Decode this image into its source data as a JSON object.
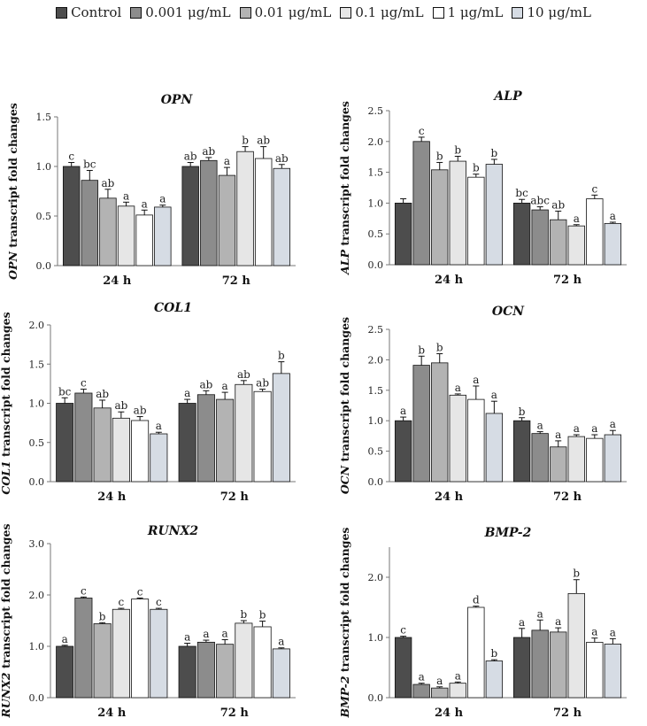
{
  "legend": [
    {
      "label": "Control",
      "color": "#4d4d4d"
    },
    {
      "label": "0.001 μg/mL",
      "color": "#8c8c8c"
    },
    {
      "label": "0.01 μg/mL",
      "color": "#b3b3b3"
    },
    {
      "label": "0.1 μg/mL",
      "color": "#e6e6e6"
    },
    {
      "label": "1 μg/mL",
      "color": "#ffffff"
    },
    {
      "label": "10 μg/mL",
      "color": "#d6dce4"
    }
  ],
  "chart_data": [
    {
      "type": "bar",
      "title": "OPN",
      "ylabel": "OPN transcript fold changes",
      "categories": [
        "24 h",
        "72 h"
      ],
      "ylim": [
        0,
        1.5
      ],
      "yticks": [
        "0.0",
        "0.5",
        "1.0",
        "1.5"
      ],
      "series": [
        {
          "name": "Control",
          "values": [
            1.0,
            1.0
          ],
          "errors": [
            0.04,
            0.04
          ],
          "labels": [
            "c",
            "ab"
          ]
        },
        {
          "name": "0.001 μg/mL",
          "values": [
            0.86,
            1.06
          ],
          "errors": [
            0.1,
            0.03
          ],
          "labels": [
            "bc",
            "ab"
          ]
        },
        {
          "name": "0.01 μg/mL",
          "values": [
            0.68,
            0.91
          ],
          "errors": [
            0.09,
            0.08
          ],
          "labels": [
            "ab",
            "a"
          ]
        },
        {
          "name": "0.1 μg/mL",
          "values": [
            0.6,
            1.15
          ],
          "errors": [
            0.04,
            0.05
          ],
          "labels": [
            "a",
            "b"
          ]
        },
        {
          "name": "1 μg/mL",
          "values": [
            0.51,
            1.08
          ],
          "errors": [
            0.05,
            0.12
          ],
          "labels": [
            "a",
            "ab"
          ]
        },
        {
          "name": "10 μg/mL",
          "values": [
            0.59,
            0.98
          ],
          "errors": [
            0.02,
            0.04
          ],
          "labels": [
            "a",
            "ab"
          ]
        }
      ]
    },
    {
      "type": "bar",
      "title": "ALP",
      "ylabel": "ALP transcript fold changes",
      "categories": [
        "24 h",
        "72 h"
      ],
      "ylim": [
        0,
        2.5
      ],
      "yticks": [
        "0.0",
        "0.5",
        "1.0",
        "1.5",
        "2.0",
        "2.5"
      ],
      "series": [
        {
          "name": "Control",
          "values": [
            1.0,
            1.0
          ],
          "errors": [
            0.07,
            0.06
          ],
          "labels": [
            "",
            "bc"
          ]
        },
        {
          "name": "0.001 μg/mL",
          "values": [
            2.0,
            0.89
          ],
          "errors": [
            0.07,
            0.05
          ],
          "labels": [
            "c",
            "abc"
          ]
        },
        {
          "name": "0.01 μg/mL",
          "values": [
            1.54,
            0.73
          ],
          "errors": [
            0.12,
            0.14
          ],
          "labels": [
            "b",
            "ab"
          ]
        },
        {
          "name": "0.1 μg/mL",
          "values": [
            1.68,
            0.63
          ],
          "errors": [
            0.08,
            0.02
          ],
          "labels": [
            "b",
            "a"
          ]
        },
        {
          "name": "1 μg/mL",
          "values": [
            1.42,
            1.07
          ],
          "errors": [
            0.05,
            0.06
          ],
          "labels": [
            "b",
            "c"
          ]
        },
        {
          "name": "10 μg/mL",
          "values": [
            1.63,
            0.67
          ],
          "errors": [
            0.08,
            0.02
          ],
          "labels": [
            "b",
            "a"
          ]
        }
      ]
    },
    {
      "type": "bar",
      "title": "COL1",
      "ylabel": "COL1 transcript fold changes",
      "categories": [
        "24 h",
        "72 h"
      ],
      "ylim": [
        0,
        2.0
      ],
      "yticks": [
        "0.0",
        "0.5",
        "1.0",
        "1.5",
        "2.0"
      ],
      "series": [
        {
          "name": "Control",
          "values": [
            1.0,
            1.0
          ],
          "errors": [
            0.07,
            0.05
          ],
          "labels": [
            "bc",
            "a"
          ]
        },
        {
          "name": "0.001 μg/mL",
          "values": [
            1.13,
            1.11
          ],
          "errors": [
            0.05,
            0.05
          ],
          "labels": [
            "c",
            "ab"
          ]
        },
        {
          "name": "0.01 μg/mL",
          "values": [
            0.94,
            1.05
          ],
          "errors": [
            0.1,
            0.09
          ],
          "labels": [
            "ab",
            "a"
          ]
        },
        {
          "name": "0.1 μg/mL",
          "values": [
            0.81,
            1.24
          ],
          "errors": [
            0.08,
            0.05
          ],
          "labels": [
            "ab",
            "ab"
          ]
        },
        {
          "name": "1 μg/mL",
          "values": [
            0.78,
            1.15
          ],
          "errors": [
            0.05,
            0.03
          ],
          "labels": [
            "ab",
            "ab"
          ]
        },
        {
          "name": "10 μg/mL",
          "values": [
            0.61,
            1.38
          ],
          "errors": [
            0.02,
            0.15
          ],
          "labels": [
            "a",
            "b"
          ]
        }
      ]
    },
    {
      "type": "bar",
      "title": "OCN",
      "ylabel": "OCN transcript fold changes",
      "categories": [
        "24 h",
        "72 h"
      ],
      "ylim": [
        0,
        2.5
      ],
      "yticks": [
        "0.0",
        "0.5",
        "1.0",
        "1.5",
        "2.0",
        "2.5"
      ],
      "series": [
        {
          "name": "Control",
          "values": [
            1.0,
            1.0
          ],
          "errors": [
            0.06,
            0.05
          ],
          "labels": [
            "a",
            "b"
          ]
        },
        {
          "name": "0.001 μg/mL",
          "values": [
            1.91,
            0.79
          ],
          "errors": [
            0.15,
            0.03
          ],
          "labels": [
            "b",
            "a"
          ]
        },
        {
          "name": "0.01 μg/mL",
          "values": [
            1.95,
            0.57
          ],
          "errors": [
            0.15,
            0.1
          ],
          "labels": [
            "b",
            "a"
          ]
        },
        {
          "name": "0.1 μg/mL",
          "values": [
            1.42,
            0.74
          ],
          "errors": [
            0.02,
            0.03
          ],
          "labels": [
            "a",
            "a"
          ]
        },
        {
          "name": "1 μg/mL",
          "values": [
            1.35,
            0.71
          ],
          "errors": [
            0.22,
            0.06
          ],
          "labels": [
            "a",
            "a"
          ]
        },
        {
          "name": "10 μg/mL",
          "values": [
            1.12,
            0.77
          ],
          "errors": [
            0.2,
            0.07
          ],
          "labels": [
            "a",
            "a"
          ]
        }
      ]
    },
    {
      "type": "bar",
      "title": "RUNX2",
      "ylabel": "RUNX2 transcript fold changes",
      "categories": [
        "24 h",
        "72 h"
      ],
      "ylim": [
        0,
        3.0
      ],
      "yticks": [
        "0.0",
        "1.0",
        "2.0",
        "3.0"
      ],
      "series": [
        {
          "name": "Control",
          "values": [
            1.0,
            1.0
          ],
          "errors": [
            0.02,
            0.06
          ],
          "labels": [
            "a",
            "a"
          ]
        },
        {
          "name": "0.001 μg/mL",
          "values": [
            1.94,
            1.08
          ],
          "errors": [
            0.02,
            0.04
          ],
          "labels": [
            "c",
            "a"
          ]
        },
        {
          "name": "0.01 μg/mL",
          "values": [
            1.44,
            1.04
          ],
          "errors": [
            0.02,
            0.09
          ],
          "labels": [
            "b",
            "a"
          ]
        },
        {
          "name": "0.1 μg/mL",
          "values": [
            1.72,
            1.45
          ],
          "errors": [
            0.02,
            0.05
          ],
          "labels": [
            "c",
            "b"
          ]
        },
        {
          "name": "1 μg/mL",
          "values": [
            1.92,
            1.38
          ],
          "errors": [
            0.02,
            0.11
          ],
          "labels": [
            "c",
            "b"
          ]
        },
        {
          "name": "10 μg/mL",
          "values": [
            1.72,
            0.95
          ],
          "errors": [
            0.02,
            0.02
          ],
          "labels": [
            "c",
            "a"
          ]
        }
      ]
    },
    {
      "type": "bar",
      "title": "BMP-2",
      "ylabel": "BMP-2 transcript fold changes",
      "categories": [
        "24 h",
        "72 h"
      ],
      "ylim": [
        0,
        2.5
      ],
      "yticks": [
        "0.0",
        "1.0",
        "2.0"
      ],
      "series": [
        {
          "name": "Control",
          "values": [
            1.0,
            1.0
          ],
          "errors": [
            0.02,
            0.15
          ],
          "labels": [
            "c",
            "a"
          ]
        },
        {
          "name": "0.001 μg/mL",
          "values": [
            0.22,
            1.12
          ],
          "errors": [
            0.02,
            0.17
          ],
          "labels": [
            "a",
            "a"
          ]
        },
        {
          "name": "0.01 μg/mL",
          "values": [
            0.16,
            1.09
          ],
          "errors": [
            0.02,
            0.07
          ],
          "labels": [
            "a",
            "a"
          ]
        },
        {
          "name": "0.1 μg/mL",
          "values": [
            0.24,
            1.73
          ],
          "errors": [
            0.02,
            0.23
          ],
          "labels": [
            "a",
            "b"
          ]
        },
        {
          "name": "1 μg/mL",
          "values": [
            1.5,
            0.92
          ],
          "errors": [
            0.02,
            0.07
          ],
          "labels": [
            "d",
            "a"
          ]
        },
        {
          "name": "10 μg/mL",
          "values": [
            0.61,
            0.89
          ],
          "errors": [
            0.02,
            0.09
          ],
          "labels": [
            "b",
            "a"
          ]
        }
      ]
    }
  ]
}
